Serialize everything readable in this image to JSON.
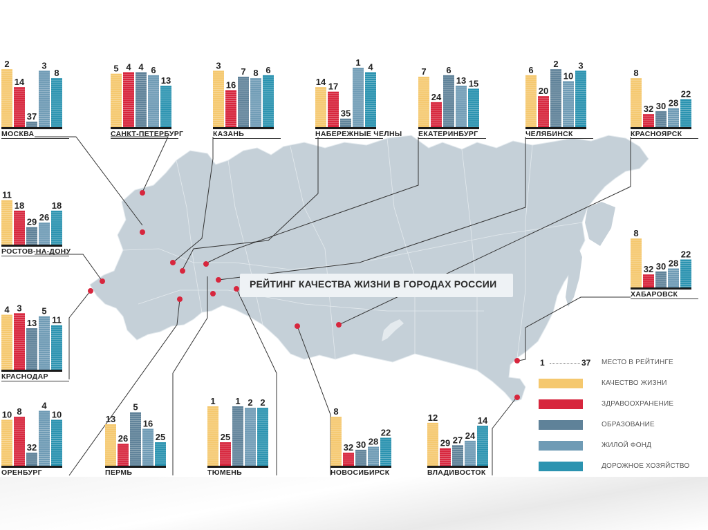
{
  "title": "РЕЙТИНГ КАЧЕСТВА ЖИЗНИ В ГОРОДАХ РОССИИ",
  "colors": {
    "map": "#c5d0d8",
    "map_border": "#e4eaee",
    "pin": "#d7263d",
    "line": "#333333",
    "series": [
      "#f5c86e",
      "#d7263d",
      "#5f8299",
      "#6f9bb5",
      "#2b93b0"
    ]
  },
  "legend": {
    "scale_low": "1",
    "scale_high": "37",
    "scale_label": "МЕСТО В РЕЙТИНГЕ",
    "items": [
      "КАЧЕСТВО ЖИЗНИ",
      "ЗДРАВООХРАНЕНИЕ",
      "ОБРАЗОВАНИЕ",
      "ЖИЛОЙ ФОНД",
      "ДОРОЖНОЕ ХОЗЯЙСТВО"
    ]
  },
  "chart_data": {
    "type": "bar",
    "title": "РЕЙТИНГ КАЧЕСТВА ЖИЗНИ В ГОРОДАХ РОССИИ",
    "value_meaning": "МЕСТО В РЕЙТИНГЕ (1 — 37)",
    "rank_range": [
      1,
      37
    ],
    "series_names": [
      "КАЧЕСТВО ЖИЗНИ",
      "ЗДРАВООХРАНЕНИЕ",
      "ОБРАЗОВАНИЕ",
      "ЖИЛОЙ ФОНД",
      "ДОРОЖНОЕ ХОЗЯЙСТВО"
    ],
    "cities": [
      {
        "name": "МОСКВА",
        "values": [
          2,
          14,
          37,
          3,
          8
        ]
      },
      {
        "name": "САНКТ-ПЕТЕРБУРГ",
        "values": [
          5,
          4,
          4,
          6,
          13
        ]
      },
      {
        "name": "КАЗАНЬ",
        "values": [
          3,
          16,
          7,
          8,
          6
        ]
      },
      {
        "name": "НАБЕРЕЖНЫЕ ЧЕЛНЫ",
        "values": [
          14,
          17,
          35,
          1,
          4
        ]
      },
      {
        "name": "ЕКАТЕРИНБУРГ",
        "values": [
          7,
          24,
          6,
          13,
          15
        ]
      },
      {
        "name": "ЧЕЛЯБИНСК",
        "values": [
          6,
          20,
          2,
          10,
          3
        ]
      },
      {
        "name": "КРАСНОЯРСК",
        "values": [
          8,
          32,
          30,
          28,
          22
        ]
      },
      {
        "name": "РОСТОВ-НА-ДОНУ",
        "values": [
          11,
          18,
          29,
          26,
          18
        ]
      },
      {
        "name": "ХАБАРОВСК",
        "values": [
          8,
          32,
          30,
          28,
          22
        ]
      },
      {
        "name": "КРАСНОДАР",
        "values": [
          4,
          3,
          13,
          5,
          11
        ]
      },
      {
        "name": "ОРЕНБУРГ",
        "values": [
          10,
          8,
          32,
          4,
          10
        ]
      },
      {
        "name": "ПЕРМЬ",
        "values": [
          13,
          26,
          5,
          16,
          25
        ]
      },
      {
        "name": "ТЮМЕНЬ",
        "values": [
          1,
          25,
          1,
          2,
          2
        ]
      },
      {
        "name": "НОВОСИБИРСК",
        "values": [
          8,
          32,
          30,
          28,
          22
        ]
      },
      {
        "name": "ВЛАДИВОСТОК",
        "values": [
          12,
          29,
          27,
          24,
          14
        ]
      }
    ]
  }
}
